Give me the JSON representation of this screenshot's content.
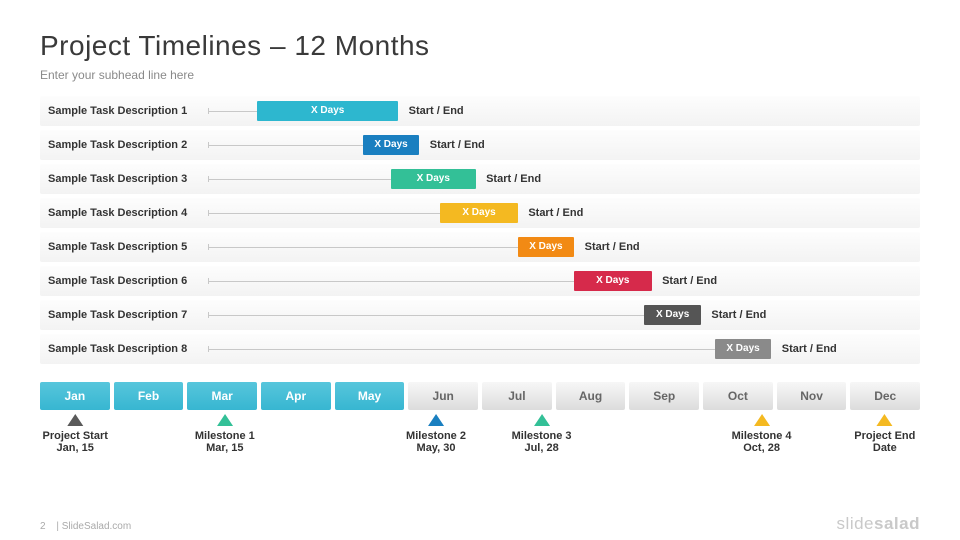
{
  "title": "Project Timelines – 12 Months",
  "subhead": "Enter your subhead line here",
  "page_number": "2",
  "footer_text": "| SlideSalad.com",
  "brand_light": "slide",
  "brand_bold": "salad",
  "colors": {
    "row_bg_top": "#fdfdfd",
    "row_bg_bottom": "#f3f3f3",
    "line": "#c8c8c8",
    "text": "#333333",
    "subtext": "#8a8a8a"
  },
  "tasks": [
    {
      "label": "Sample Task Description 1",
      "line_start_pct": 0,
      "bar_start_pct": 7,
      "bar_width_pct": 20,
      "bar_label": "X Days",
      "bar_color": "#2db7cf",
      "end_label": "Start / End"
    },
    {
      "label": "Sample Task Description 2",
      "line_start_pct": 0,
      "bar_start_pct": 22,
      "bar_width_pct": 8,
      "bar_label": "X Days",
      "bar_color": "#1a7fc0",
      "end_label": "Start / End"
    },
    {
      "label": "Sample Task Description 3",
      "line_start_pct": 0,
      "bar_start_pct": 26,
      "bar_width_pct": 12,
      "bar_label": "X Days",
      "bar_color": "#33c097",
      "end_label": "Start / End"
    },
    {
      "label": "Sample Task Description 4",
      "line_start_pct": 0,
      "bar_start_pct": 33,
      "bar_width_pct": 11,
      "bar_label": "X Days",
      "bar_color": "#f4b921",
      "end_label": "Start / End"
    },
    {
      "label": "Sample Task Description 5",
      "line_start_pct": 0,
      "bar_start_pct": 44,
      "bar_width_pct": 8,
      "bar_label": "X Days",
      "bar_color": "#f28a14",
      "end_label": "Start / End"
    },
    {
      "label": "Sample Task Description 6",
      "line_start_pct": 0,
      "bar_start_pct": 52,
      "bar_width_pct": 11,
      "bar_label": "X Days",
      "bar_color": "#d62a4b",
      "end_label": "Start / End"
    },
    {
      "label": "Sample Task Description 7",
      "line_start_pct": 0,
      "bar_start_pct": 62,
      "bar_width_pct": 8,
      "bar_label": "X Days",
      "bar_color": "#555555",
      "end_label": "Start / End"
    },
    {
      "label": "Sample Task Description 8",
      "line_start_pct": 0,
      "bar_start_pct": 72,
      "bar_width_pct": 8,
      "bar_label": "X Days",
      "bar_color": "#8a8a8a",
      "end_label": "Start / End"
    }
  ],
  "months": [
    {
      "label": "Jan",
      "active": true
    },
    {
      "label": "Feb",
      "active": true
    },
    {
      "label": "Mar",
      "active": true
    },
    {
      "label": "Apr",
      "active": true
    },
    {
      "label": "May",
      "active": true
    },
    {
      "label": "Jun",
      "active": false
    },
    {
      "label": "Jul",
      "active": false
    },
    {
      "label": "Aug",
      "active": false
    },
    {
      "label": "Sep",
      "active": false
    },
    {
      "label": "Oct",
      "active": false
    },
    {
      "label": "Nov",
      "active": false
    },
    {
      "label": "Dec",
      "active": false
    }
  ],
  "milestones": [
    {
      "pos_pct": 4,
      "color": "#5a5a5a",
      "title": "Project Start",
      "date": "Jan, 15"
    },
    {
      "pos_pct": 21,
      "color": "#33c097",
      "title": "Milestone 1",
      "date": "Mar, 15"
    },
    {
      "pos_pct": 45,
      "color": "#1a7fc0",
      "title": "Milestone 2",
      "date": "May, 30"
    },
    {
      "pos_pct": 57,
      "color": "#33c097",
      "title": "Milestone 3",
      "date": "Jul, 28"
    },
    {
      "pos_pct": 82,
      "color": "#f4b921",
      "title": "Milestone 4",
      "date": "Oct, 28"
    },
    {
      "pos_pct": 96,
      "color": "#f4b921",
      "title": "Project End",
      "date": "Date"
    }
  ]
}
